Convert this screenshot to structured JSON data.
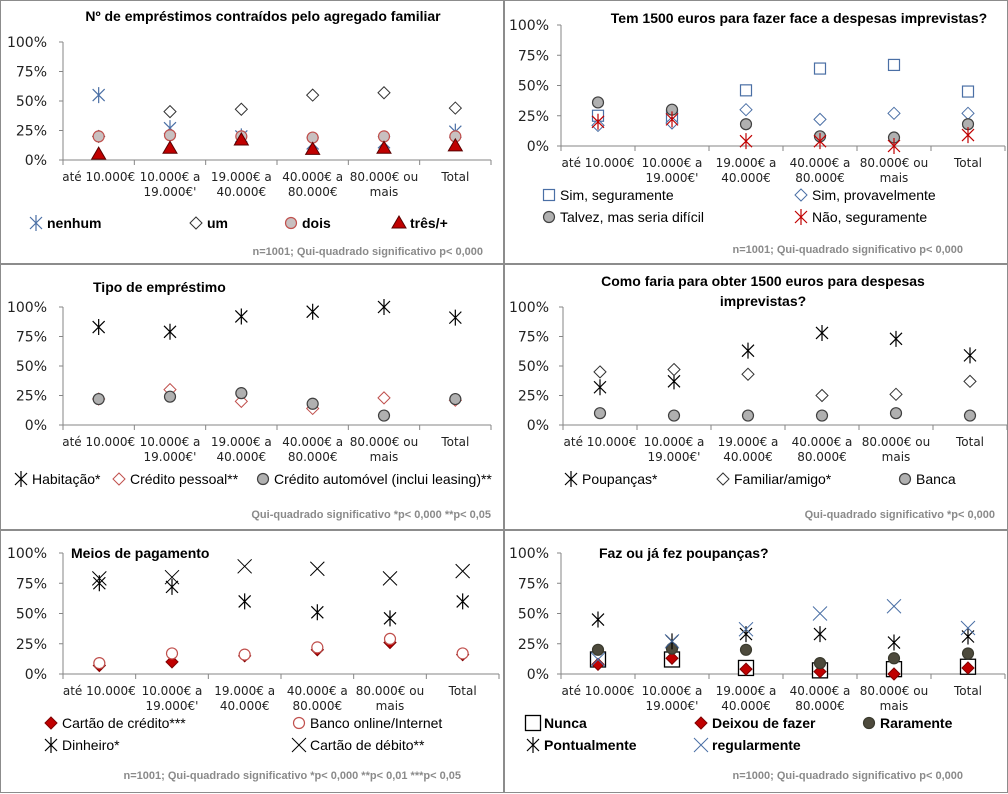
{
  "categories": [
    "até 10.000€",
    "10.000€ a 19.000€'",
    "19.000€ a 40.000€",
    "40.000€ a 80.000€",
    "80.000€ ou mais",
    "Total"
  ],
  "category_lines": [
    [
      "até 10.000€"
    ],
    [
      "10.000€ a",
      "19.000€'"
    ],
    [
      "19.000€ a",
      "40.000€"
    ],
    [
      "40.000€ a",
      "80.000€"
    ],
    [
      "80.000€ ou",
      "mais"
    ],
    [
      "Total"
    ]
  ],
  "y_ticks": [
    "0%",
    "25%",
    "50%",
    "75%",
    "100%"
  ],
  "chart_data": [
    {
      "id": "emprestimos",
      "type": "scatter",
      "title": [
        "Nº de empréstimos contraídos pelo agregado familiar"
      ],
      "xlabel": "",
      "ylabel": "",
      "ylim": [
        0,
        100
      ],
      "grid": false,
      "legend": "bottom",
      "categories": [
        "até 10.000€",
        "10.000€ a 19.000€'",
        "19.000€ a 40.000€",
        "40.000€ a 80.000€",
        "80.000€ ou mais",
        "Total"
      ],
      "note": "n=1001; Qui-quadrado significativo  p< 0,000",
      "series": [
        {
          "name": "nenhum",
          "marker": "asterisk",
          "color": "#4a6fa5",
          "fill": "none",
          "values": [
            55,
            27,
            20,
            14,
            15,
            24
          ]
        },
        {
          "name": "um",
          "marker": "diamond",
          "color": "#333333",
          "fill": "#ffffff",
          "values": [
            20,
            41,
            43,
            55,
            57,
            44
          ]
        },
        {
          "name": "dois",
          "marker": "circle",
          "color": "#c0504d",
          "fill": "#c8c0c0",
          "values": [
            20,
            21,
            20,
            19,
            20,
            20
          ]
        },
        {
          "name": "três/+",
          "marker": "triangle",
          "color": "#5a0000",
          "fill": "#c00000",
          "values": [
            5,
            10,
            17,
            9,
            10,
            12
          ]
        }
      ]
    },
    {
      "id": "1500euros",
      "type": "scatter",
      "title": [
        "Tem 1500 euros para fazer face a despesas imprevistas?"
      ],
      "xlabel": "",
      "ylabel": "",
      "ylim": [
        0,
        100
      ],
      "grid": false,
      "legend": "bottom",
      "categories": [
        "até 10.000€",
        "10.000€ a 19.000€'",
        "19.000€ a 40.000€",
        "40.000€ a 80.000€",
        "80.000€ ou mais",
        "Total"
      ],
      "note": "n=1001; Qui-quadrado significativo  p< 0,000",
      "series": [
        {
          "name": "Sim, seguramente",
          "marker": "square",
          "color": "#4a6fa5",
          "fill": "#ffffff",
          "values": [
            25,
            25,
            46,
            64,
            67,
            45
          ]
        },
        {
          "name": "Sim, provavelmente",
          "marker": "diamond",
          "color": "#4a6fa5",
          "fill": "#ffffff",
          "values": [
            17,
            19,
            30,
            22,
            27,
            27
          ]
        },
        {
          "name": "Talvez, mas seria difícil",
          "marker": "circle",
          "color": "#404040",
          "fill": "#b0b0b0",
          "values": [
            36,
            30,
            18,
            8,
            7,
            18
          ]
        },
        {
          "name": "Não, seguramente",
          "marker": "asterisk",
          "color": "#c00000",
          "fill": "none",
          "values": [
            20,
            22,
            4,
            4,
            0,
            9
          ]
        }
      ]
    },
    {
      "id": "tipo",
      "type": "scatter",
      "title": [
        "Tipo de empréstimo"
      ],
      "xlabel": "",
      "ylabel": "",
      "ylim": [
        0,
        100
      ],
      "grid": false,
      "legend": "bottom",
      "categories": [
        "até 10.000€",
        "10.000€ a 19.000€'",
        "19.000€ a 40.000€",
        "40.000€ a 80.000€",
        "80.000€ ou mais",
        "Total"
      ],
      "note": "Qui-quadrado significativo  *p< 0,000 **p< 0,05",
      "series": [
        {
          "name": "Habitação*",
          "marker": "asterisk",
          "color": "#000000",
          "fill": "none",
          "values": [
            83,
            79,
            92,
            96,
            100,
            91
          ]
        },
        {
          "name": "Crédito  pessoal**",
          "marker": "diamond",
          "color": "#c0504d",
          "fill": "#ffffff",
          "values": [
            22,
            30,
            20,
            14,
            23,
            21
          ]
        },
        {
          "name": "Crédito automóvel (inclui leasing)**",
          "marker": "circle",
          "color": "#404040",
          "fill": "#b0b0b0",
          "values": [
            22,
            24,
            27,
            18,
            8,
            22
          ]
        }
      ]
    },
    {
      "id": "comofaria",
      "type": "scatter",
      "title": [
        "Como faria para obter 1500 euros para despesas",
        "imprevistas?"
      ],
      "xlabel": "",
      "ylabel": "",
      "ylim": [
        0,
        100
      ],
      "grid": false,
      "legend": "bottom",
      "categories": [
        "até 10.000€",
        "10.000€ a 19.000€'",
        "19.000€ a 40.000€",
        "40.000€ a 80.000€",
        "80.000€ ou mais",
        "Total"
      ],
      "note": "Qui-quadrado significativo  *p< 0,000",
      "series": [
        {
          "name": "Poupanças*",
          "marker": "asterisk",
          "color": "#000000",
          "fill": "none",
          "values": [
            32,
            37,
            63,
            78,
            73,
            59
          ]
        },
        {
          "name": "Familiar/amigo*",
          "marker": "diamond",
          "color": "#333333",
          "fill": "#ffffff",
          "values": [
            45,
            47,
            43,
            25,
            26,
            37
          ]
        },
        {
          "name": "Banca",
          "marker": "circle",
          "color": "#404040",
          "fill": "#b0b0b0",
          "values": [
            10,
            8,
            8,
            8,
            10,
            8
          ]
        }
      ]
    },
    {
      "id": "meios",
      "type": "scatter",
      "title": [
        "Meios de pagamento"
      ],
      "xlabel": "",
      "ylabel": "",
      "ylim": [
        0,
        100
      ],
      "grid": false,
      "legend": "bottom",
      "categories": [
        "até 10.000€",
        "10.000€ a 19.000€'",
        "19.000€ a 40.000€",
        "40.000€ a 80.000€",
        "80.000€ ou mais",
        "Total"
      ],
      "note": "n=1001; Qui-quadrado significativo  *p< 0,000 **p< 0,01 ***p< 0,05",
      "series": [
        {
          "name": "Cartão de crédito***",
          "marker": "diamond-filled",
          "color": "#7f0000",
          "fill": "#c00000",
          "values": [
            7,
            10,
            15,
            20,
            26,
            16
          ]
        },
        {
          "name": "Banco online/Internet",
          "marker": "circle",
          "color": "#c0504d",
          "fill": "#ffffff",
          "values": [
            9,
            17,
            16,
            22,
            29,
            17
          ]
        },
        {
          "name": "Dinheiro*",
          "marker": "asterisk",
          "color": "#000000",
          "fill": "none",
          "values": [
            75,
            72,
            60,
            51,
            46,
            60
          ]
        },
        {
          "name": "Cartão de débito**",
          "marker": "x",
          "color": "#000000",
          "fill": "none",
          "values": [
            79,
            80,
            89,
            87,
            79,
            85
          ]
        }
      ]
    },
    {
      "id": "poupancas",
      "type": "scatter",
      "title": [
        "Faz ou já fez poupanças?"
      ],
      "xlabel": "",
      "ylabel": "",
      "ylim": [
        0,
        100
      ],
      "grid": false,
      "legend": "bottom",
      "categories": [
        "até 10.000€",
        "10.000€ a 19.000€'",
        "19.000€ a 40.000€",
        "40.000€ a 80.000€",
        "80.000€ ou mais",
        "Total"
      ],
      "note": "n=1000; Qui-quadrado significativo   p< 0,000",
      "series": [
        {
          "name": "Nunca",
          "marker": "square-big",
          "color": "#000000",
          "fill": "#ffffff",
          "values": [
            12,
            12,
            5,
            3,
            4,
            6
          ]
        },
        {
          "name": "Deixou de fazer",
          "marker": "diamond-filled",
          "color": "#7f0000",
          "fill": "#c00000",
          "values": [
            8,
            13,
            4,
            2,
            0,
            5
          ]
        },
        {
          "name": "Raramente",
          "marker": "circle",
          "color": "#3a3a2e",
          "fill": "#4d4a3c",
          "values": [
            20,
            21,
            20,
            9,
            13,
            17
          ]
        },
        {
          "name": "Pontualmente",
          "marker": "asterisk",
          "color": "#000000",
          "fill": "none",
          "values": [
            45,
            27,
            33,
            33,
            26,
            31
          ]
        },
        {
          "name": "regularmente",
          "marker": "x",
          "color": "#4a6fa5",
          "fill": "none",
          "values": [
            12,
            27,
            37,
            50,
            56,
            38
          ]
        }
      ]
    }
  ]
}
